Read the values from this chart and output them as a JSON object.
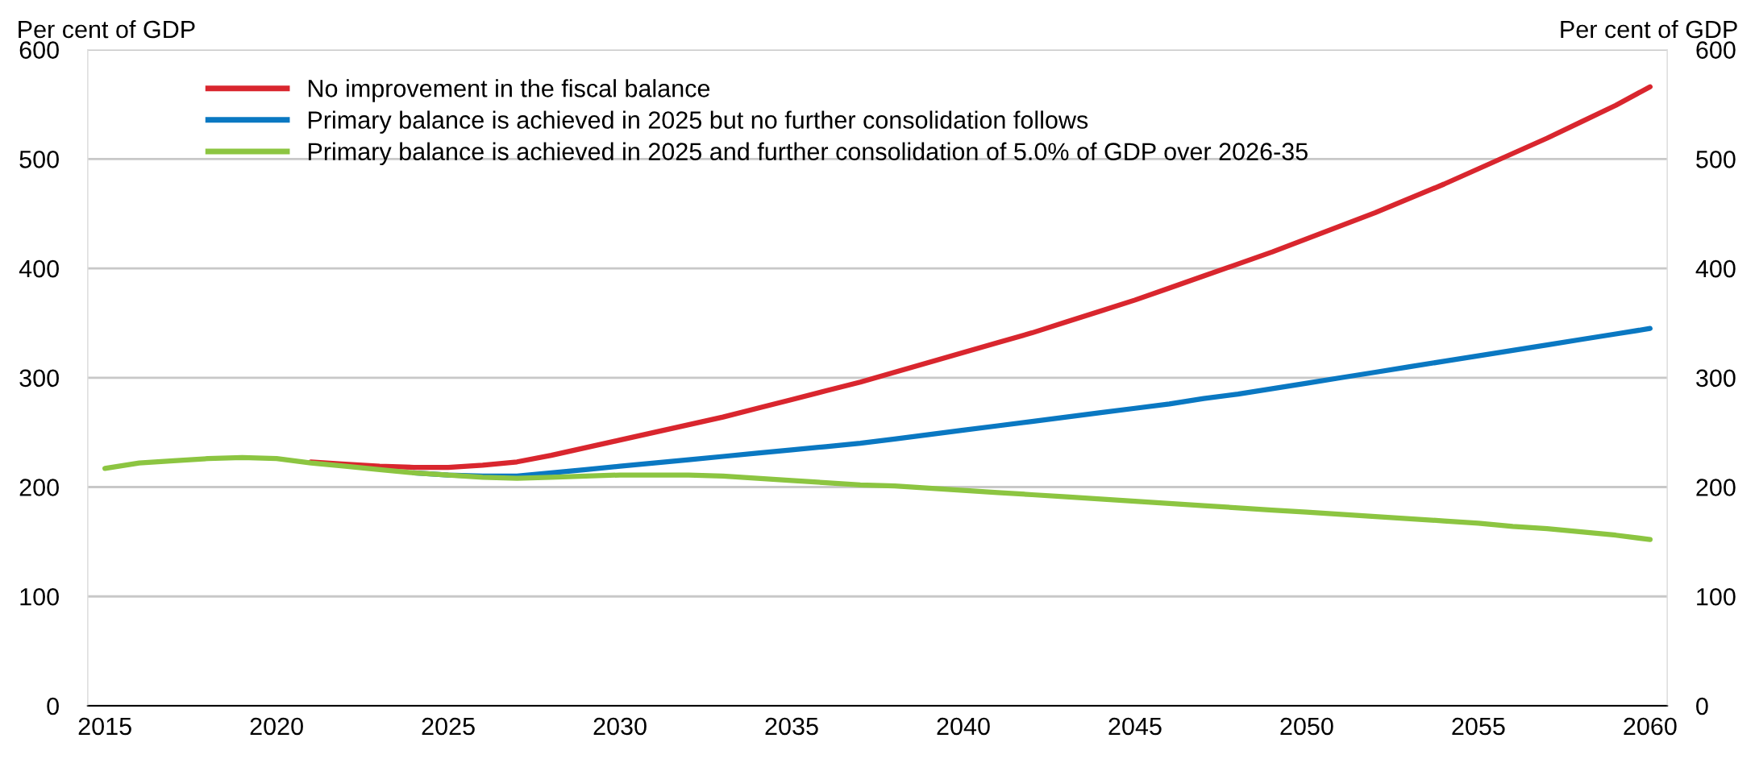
{
  "chart_data": {
    "type": "line",
    "ylabel": "Per cent of GDP",
    "y2label": "Per cent of GDP",
    "categories": [
      "2015",
      null,
      null,
      null,
      null,
      "2020",
      null,
      null,
      null,
      null,
      "2025",
      null,
      null,
      null,
      null,
      "2030",
      null,
      null,
      null,
      null,
      "2035",
      null,
      null,
      null,
      null,
      "2040",
      null,
      null,
      null,
      null,
      "2045",
      null,
      null,
      null,
      null,
      "2050",
      null,
      null,
      null,
      null,
      "2055",
      null,
      null,
      null,
      null,
      "2060"
    ],
    "series": [
      {
        "name": "No improvement in the fiscal balance",
        "color": "#d9262e",
        "values": [
          null,
          null,
          null,
          null,
          null,
          null,
          223,
          221,
          219,
          218,
          218,
          220,
          223,
          229,
          236,
          243,
          250,
          257,
          264,
          272,
          280,
          288,
          296,
          305,
          314,
          323,
          332,
          341,
          351,
          361,
          371,
          382,
          393,
          404,
          415,
          427,
          439,
          451,
          464,
          477,
          491,
          505,
          519,
          534,
          549,
          566
        ]
      },
      {
        "name": "Primary balance is achieved in 2025 but no further consolidation follows",
        "color": "#0a78c2",
        "values": [
          null,
          null,
          null,
          null,
          null,
          null,
          null,
          null,
          null,
          213,
          211,
          210,
          210,
          213,
          216,
          219,
          222,
          225,
          228,
          231,
          234,
          237,
          240,
          244,
          248,
          252,
          256,
          260,
          264,
          268,
          272,
          276,
          281,
          285,
          290,
          295,
          300,
          305,
          310,
          315,
          320,
          325,
          330,
          335,
          340,
          345
        ]
      },
      {
        "name": "Primary balance is achieved in 2025 and further consolidation of 5.0% of GDP over 2026-35",
        "color": "#8cc541",
        "values": [
          217,
          222,
          224,
          226,
          227,
          226,
          222,
          219,
          216,
          213,
          211,
          209,
          208,
          209,
          210,
          211,
          211,
          211,
          210,
          208,
          206,
          204,
          202,
          201,
          199,
          197,
          195,
          193,
          191,
          189,
          187,
          185,
          183,
          181,
          179,
          177,
          175,
          173,
          171,
          169,
          167,
          164,
          162,
          159,
          156,
          152
        ]
      }
    ],
    "ylim": [
      0,
      600
    ],
    "yticks": [
      0,
      100,
      200,
      300,
      400,
      500,
      600
    ],
    "y2lim": [
      0,
      600
    ],
    "y2ticks": [
      0,
      100,
      200,
      300,
      400,
      500,
      600
    ],
    "grid": "y",
    "legend": "top left",
    "marker": "none",
    "line_style": "solid"
  }
}
